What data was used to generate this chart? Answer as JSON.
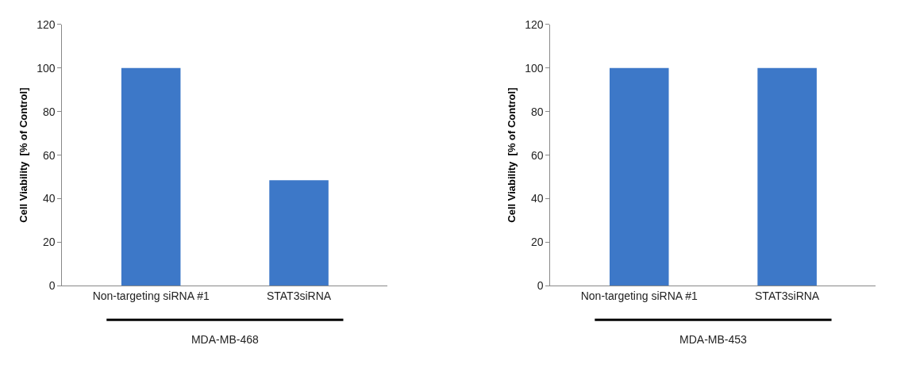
{
  "chart_data": [
    {
      "type": "bar",
      "categories": [
        "Non-targeting siRNA #1",
        "STAT3siRNA"
      ],
      "values": [
        100,
        48.5
      ],
      "color": "#3d78c8",
      "xlabel": "MDA-MB-468",
      "ylabel": "Cell Viability  [% of Control]",
      "ylim": [
        0,
        120
      ],
      "yticks": [
        0,
        20,
        40,
        60,
        80,
        100,
        120
      ]
    },
    {
      "type": "bar",
      "categories": [
        "Non-targeting siRNA #1",
        "STAT3siRNA"
      ],
      "values": [
        100,
        100
      ],
      "color": "#3d78c8",
      "xlabel": "MDA-MB-453",
      "ylabel": "Cell Viability  [% of Control]",
      "ylim": [
        0,
        120
      ],
      "yticks": [
        0,
        20,
        40,
        60,
        80,
        100,
        120
      ]
    }
  ]
}
